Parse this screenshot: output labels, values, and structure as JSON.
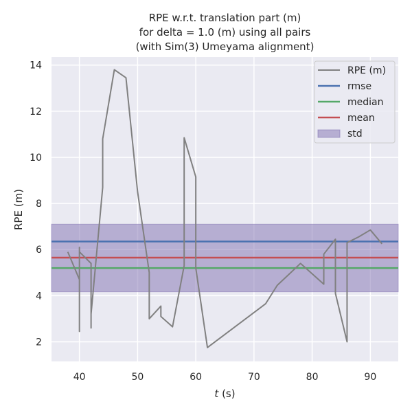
{
  "chart_data": {
    "type": "line",
    "title_lines": [
      "RPE w.r.t. translation part (m)",
      "for delta = 1.0 (m) using all pairs",
      "(with Sim(3) Umeyama alignment)"
    ],
    "xlabel_italic": "t",
    "xlabel_suffix": " (s)",
    "ylabel": "RPE (m)",
    "xlim": [
      35.2,
      94.8
    ],
    "ylim": [
      1.15,
      14.35
    ],
    "x_ticks": [
      40,
      50,
      60,
      70,
      80,
      90
    ],
    "y_ticks": [
      2,
      4,
      6,
      8,
      10,
      12,
      14
    ],
    "grid": true,
    "legend_position": "top-right",
    "series": [
      {
        "name": "RPE (m)",
        "type": "line",
        "color": "#808080",
        "points": [
          [
            38,
            5.9
          ],
          [
            40,
            4.7
          ],
          [
            40,
            2.45
          ],
          [
            40,
            6.1
          ],
          [
            40,
            5.9
          ],
          [
            42,
            5.4
          ],
          [
            42,
            2.6
          ],
          [
            42,
            3.2
          ],
          [
            44,
            8.7
          ],
          [
            44,
            10.8
          ],
          [
            46,
            13.8
          ],
          [
            48,
            13.45
          ],
          [
            50,
            8.5
          ],
          [
            52,
            5.0
          ],
          [
            52,
            3.0
          ],
          [
            54,
            3.55
          ],
          [
            54,
            3.1
          ],
          [
            56,
            2.65
          ],
          [
            58,
            5.3
          ],
          [
            58,
            10.85
          ],
          [
            60,
            9.15
          ],
          [
            60,
            5.2
          ],
          [
            62,
            1.75
          ],
          [
            72,
            3.65
          ],
          [
            74,
            4.45
          ],
          [
            78,
            5.4
          ],
          [
            80,
            4.95
          ],
          [
            82,
            4.5
          ],
          [
            82,
            5.8
          ],
          [
            84,
            6.45
          ],
          [
            84,
            4.1
          ],
          [
            86,
            2.0
          ],
          [
            86,
            6.3
          ],
          [
            88,
            6.55
          ],
          [
            90,
            6.85
          ],
          [
            92,
            6.25
          ]
        ]
      },
      {
        "name": "rmse",
        "type": "hline",
        "color": "#4c72b0",
        "value": 6.35
      },
      {
        "name": "median",
        "type": "hline",
        "color": "#55a868",
        "value": 5.2
      },
      {
        "name": "mean",
        "type": "hline",
        "color": "#c44e52",
        "value": 5.65
      },
      {
        "name": "std",
        "type": "band",
        "color": "#8172b2",
        "lower": 4.17,
        "upper": 7.1
      }
    ]
  }
}
